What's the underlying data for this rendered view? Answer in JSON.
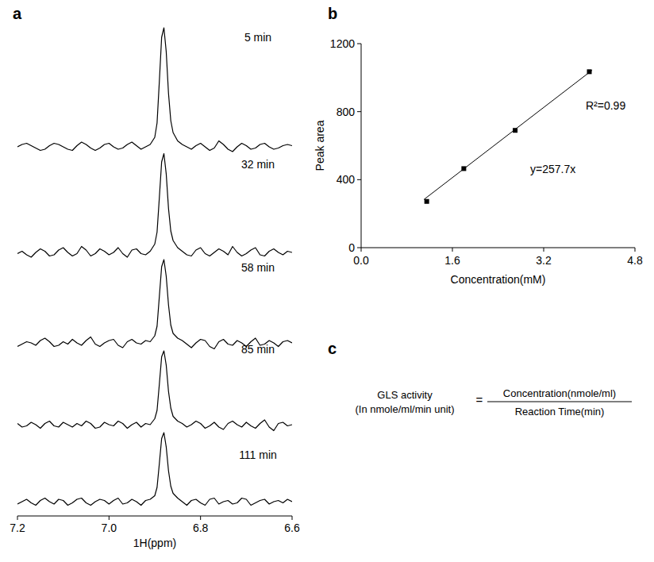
{
  "chart_data": [
    {
      "type": "line",
      "panel": "a",
      "xlabel": "1H(ppm)",
      "color": "#000000",
      "tick_labels": "x",
      "x": [
        7.2,
        7.19,
        7.18,
        7.17,
        7.16,
        7.15,
        7.14,
        7.13,
        7.12,
        7.11,
        7.1,
        7.09,
        7.08,
        7.07,
        7.06,
        7.05,
        7.04,
        7.03,
        7.02,
        7.01,
        7.0,
        6.99,
        6.98,
        6.97,
        6.96,
        6.95,
        6.94,
        6.93,
        6.92,
        6.91,
        6.9,
        6.895,
        6.89,
        6.885,
        6.88,
        6.875,
        6.87,
        6.865,
        6.86,
        6.85,
        6.84,
        6.83,
        6.82,
        6.81,
        6.8,
        6.79,
        6.78,
        6.77,
        6.76,
        6.75,
        6.74,
        6.73,
        6.72,
        6.71,
        6.7,
        6.69,
        6.68,
        6.67,
        6.66,
        6.65,
        6.64,
        6.63,
        6.62,
        6.61,
        6.6
      ],
      "xlim": [
        7.2,
        6.6
      ],
      "xticks": [
        7.2,
        {
          "value": 7.0,
          "label": "7.0"
        },
        6.8,
        6.6
      ],
      "ylim": [
        -10,
        110
      ],
      "series": [
        {
          "name": "5 min",
          "values": [
            0,
            2,
            3,
            1,
            -1,
            -3,
            -2,
            1,
            3,
            2,
            0,
            -2,
            -3,
            1,
            4,
            2,
            -1,
            -3,
            -1,
            2,
            3,
            0,
            -2,
            -1,
            2,
            4,
            1,
            -2,
            0,
            2,
            8,
            20,
            55,
            92,
            100,
            80,
            45,
            22,
            12,
            5,
            2,
            0,
            -2,
            1,
            3,
            0,
            -3,
            -1,
            5,
            2,
            -2,
            -4,
            0,
            3,
            1,
            -2,
            -1,
            2,
            3,
            0,
            -2,
            -1,
            1,
            2,
            1
          ]
        },
        {
          "name": "32 min",
          "values": [
            -1,
            1,
            -2,
            -4,
            0,
            3,
            1,
            -3,
            -2,
            2,
            4,
            0,
            -3,
            -1,
            5,
            2,
            -3,
            -1,
            3,
            1,
            -2,
            0,
            4,
            -1,
            -4,
            2,
            3,
            -1,
            -2,
            1,
            7,
            17,
            46,
            76,
            83,
            66,
            37,
            18,
            10,
            4,
            1,
            -2,
            -3,
            2,
            4,
            -1,
            -3,
            0,
            3,
            1,
            -2,
            5,
            0,
            -3,
            -1,
            2,
            4,
            -2,
            -3,
            1,
            3,
            0,
            -2,
            1,
            0
          ]
        },
        {
          "name": "58 min",
          "values": [
            -3,
            -1,
            1,
            0,
            -2,
            2,
            4,
            1,
            -3,
            -2,
            1,
            -1,
            3,
            0,
            -2,
            2,
            5,
            -1,
            -3,
            0,
            2,
            3,
            -2,
            -4,
            1,
            3,
            0,
            -1,
            2,
            1,
            6,
            14,
            39,
            64,
            70,
            56,
            32,
            15,
            8,
            4,
            2,
            -1,
            -4,
            0,
            3,
            2,
            -3,
            -5,
            1,
            3,
            -1,
            -2,
            2,
            0,
            -3,
            1,
            4,
            -2,
            -1,
            2,
            0,
            -3,
            1,
            2,
            0
          ]
        },
        {
          "name": "85 min",
          "values": [
            1,
            -2,
            -1,
            2,
            0,
            -3,
            1,
            3,
            -1,
            -2,
            2,
            0,
            -2,
            1,
            -1,
            3,
            1,
            -3,
            -2,
            2,
            0,
            -1,
            3,
            1,
            -3,
            0,
            2,
            -2,
            1,
            0,
            5,
            12,
            34,
            57,
            62,
            50,
            28,
            14,
            7,
            3,
            1,
            -2,
            0,
            3,
            1,
            -3,
            -1,
            2,
            -2,
            -4,
            1,
            3,
            0,
            -2,
            2,
            -1,
            -3,
            1,
            4,
            -2,
            -5,
            1,
            2,
            -1,
            0
          ]
        },
        {
          "name": "111 min",
          "values": [
            -2,
            0,
            2,
            -1,
            -3,
            1,
            3,
            0,
            -2,
            2,
            1,
            -3,
            -1,
            2,
            3,
            -1,
            -3,
            0,
            2,
            1,
            -2,
            1,
            3,
            -2,
            -1,
            2,
            0,
            -3,
            1,
            2,
            5,
            12,
            32,
            53,
            58,
            46,
            26,
            13,
            7,
            3,
            0,
            -3,
            1,
            2,
            -1,
            -3,
            2,
            3,
            -2,
            0,
            1,
            -2,
            -1,
            3,
            2,
            -3,
            -1,
            1,
            2,
            -2,
            0,
            1,
            -1,
            2,
            0
          ]
        }
      ]
    },
    {
      "type": "scatter",
      "panel": "b",
      "xlabel": "Concentration(mM)",
      "ylabel": "Peak area",
      "color": "#000000",
      "xlim": [
        0,
        4.8
      ],
      "xticks": [
        {
          "value": 0,
          "label": "0.0"
        },
        1.6,
        3.2,
        4.8
      ],
      "ylim": [
        0,
        1200
      ],
      "yticks": [
        0,
        400,
        800,
        1200
      ],
      "series": [
        {
          "type": "scatter",
          "marker": "square",
          "x": [
            1.15,
            1.8,
            2.7,
            4.0
          ],
          "values": [
            272,
            465,
            690,
            1035
          ]
        },
        {
          "type": "line",
          "line_style": "solid",
          "x": [
            1.1,
            4.05
          ],
          "values": [
            283,
            1044
          ]
        }
      ],
      "annotations": [
        "R²=0.99",
        "y=257.7x"
      ]
    }
  ],
  "panel_c": {
    "label": "c",
    "lhs": [
      "GLS activity",
      "(In nmole/ml/min unit)"
    ],
    "equals": "=",
    "numerator": "Concentration(nmole/ml)",
    "denominator": "Reaction Time(min)"
  }
}
